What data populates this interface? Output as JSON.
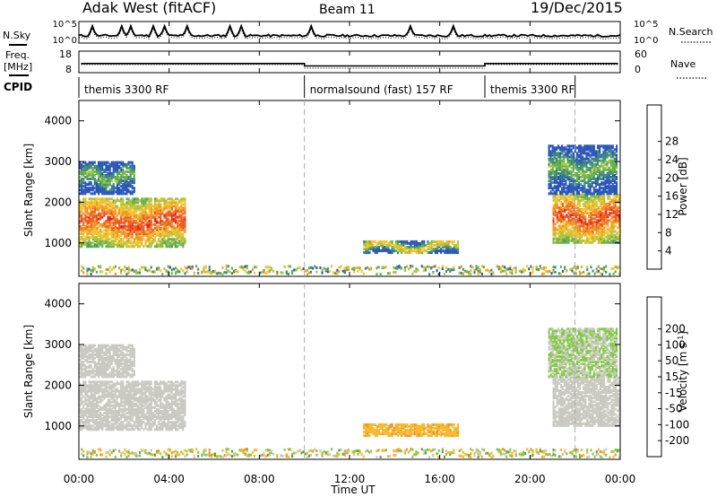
{
  "header": {
    "station": "Adak West (fitACF)",
    "beam": "Beam 11",
    "date": "19/Dec/2015"
  },
  "labels": {
    "nsky": "N.Sky",
    "nsearch": "N.Search",
    "freq": "Freq.",
    "mhz": "[MHz]",
    "nave": "Nave",
    "cpid": "CPID",
    "slant_range": "Slant Range [km]",
    "time_ut": "Time UT",
    "power": "Power [dB]",
    "velocity": "Velocity [m s",
    "velocity_exp": "-1",
    "velocity_close": "]"
  },
  "noise_panel": {
    "left_ticks": [
      "10^5",
      "10^0"
    ],
    "right_ticks": [
      "10^5",
      "10^0"
    ]
  },
  "freq_panel": {
    "left_ticks": [
      "18",
      "8"
    ],
    "right_ticks": [
      "60",
      "0"
    ]
  },
  "cpid": [
    {
      "label": "themis 3300 RF",
      "start_h": 0,
      "end_h": 10
    },
    {
      "label": "normalsound (fast) 157 RF",
      "start_h": 10,
      "end_h": 18
    },
    {
      "label": "themis 3300 RF",
      "start_h": 18,
      "end_h": 24
    }
  ],
  "x_ticks": [
    "00:00",
    "04:00",
    "08:00",
    "12:00",
    "16:00",
    "20:00",
    "00:00"
  ],
  "y_ticks": [
    "1000",
    "2000",
    "3000",
    "4000"
  ],
  "power_scale": {
    "ticks": [
      "4",
      "8",
      "12",
      "16",
      "20",
      "24",
      "28"
    ]
  },
  "velocity_scale": {
    "ticks": [
      "-200",
      "-100",
      "-50",
      "-15",
      "15",
      "50",
      "100",
      "200"
    ]
  },
  "colors": {
    "power": [
      "#1a1ae6",
      "#2a55b8",
      "#3b8a78",
      "#63b04c",
      "#b2c23c",
      "#f3c428",
      "#f09524",
      "#ef5b1e",
      "#e71d1d"
    ],
    "velocity": [
      "#e71d1d",
      "#ef5b1e",
      "#f09524",
      "#f7b82a",
      "#c9c9c1",
      "#c9c9c1",
      "#7fcb3e",
      "#53a53c",
      "#3f7f96",
      "#2b4fb0"
    ]
  },
  "chart_data": {
    "type": "heatmap",
    "x_range_h": [
      0,
      24
    ],
    "y_range_km": [
      180,
      4500
    ],
    "freq_segments": [
      {
        "start_h": 0.1,
        "end_h": 10,
        "mhz": 12.5
      },
      {
        "start_h": 10,
        "end_h": 18,
        "mhz": 10.8
      },
      {
        "start_h": 18,
        "end_h": 23.9,
        "mhz": 12.5
      }
    ],
    "noise_spikes_h": [
      0.6,
      1.9,
      2.3,
      3.3,
      3.8,
      4.8,
      6.7,
      7.2,
      10.3,
      14.7,
      16.6
    ],
    "echo_regions": [
      {
        "name": "morning",
        "start_h": 0.0,
        "end_h": 4.7,
        "range_low_km": 900,
        "range_high_km": 2100,
        "power_db": 24,
        "velocity": 0
      },
      {
        "name": "morning_upper",
        "start_h": 0.0,
        "end_h": 2.5,
        "range_low_km": 2200,
        "range_high_km": 3000,
        "power_db": 8,
        "velocity": 0
      },
      {
        "name": "afternoon",
        "start_h": 12.6,
        "end_h": 16.8,
        "range_low_km": 750,
        "range_high_km": 1050,
        "power_db": 16,
        "velocity": -40
      },
      {
        "name": "evening",
        "start_h": 21.0,
        "end_h": 24.0,
        "range_low_km": 1000,
        "range_high_km": 2200,
        "power_db": 24,
        "velocity": 0
      },
      {
        "name": "evening_upper",
        "start_h": 20.8,
        "end_h": 23.8,
        "range_low_km": 2200,
        "range_high_km": 3400,
        "power_db": 8,
        "velocity": 15
      }
    ]
  }
}
